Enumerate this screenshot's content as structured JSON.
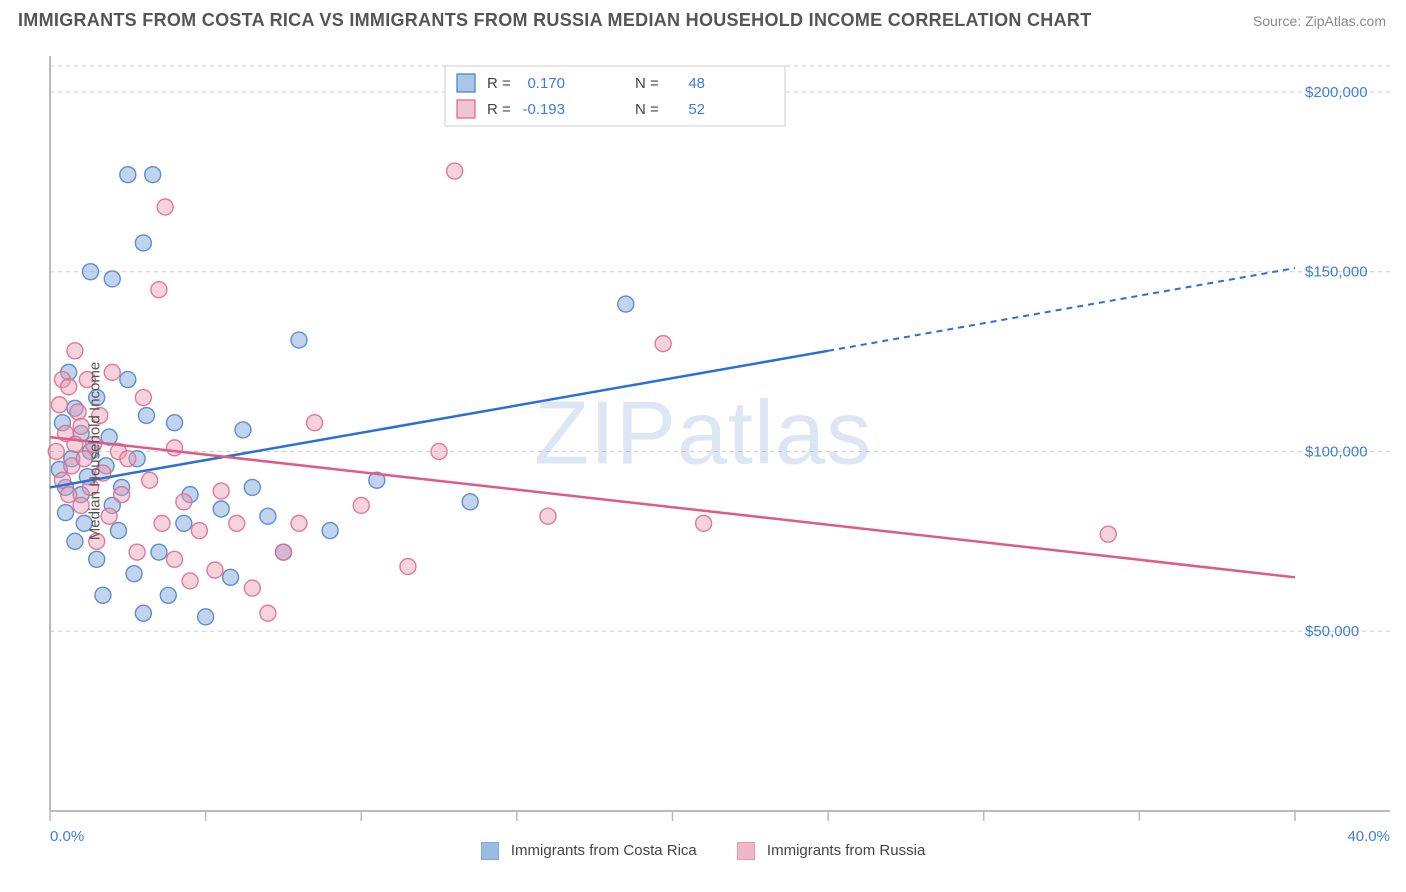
{
  "header": {
    "title": "IMMIGRANTS FROM COSTA RICA VS IMMIGRANTS FROM RUSSIA MEDIAN HOUSEHOLD INCOME CORRELATION CHART",
    "source_prefix": "Source: ",
    "source": "ZipAtlas.com"
  },
  "watermark": {
    "zip": "ZIP",
    "atlas": "atlas"
  },
  "chart": {
    "type": "scatter",
    "ylabel": "Median Household Income",
    "xlim": [
      0,
      40
    ],
    "ylim": [
      0,
      210000
    ],
    "x_ticks": [
      0,
      5,
      10,
      15,
      20,
      25,
      30,
      35,
      40
    ],
    "x_tick_labels_shown": {
      "0": "0.0%",
      "40": "40.0%"
    },
    "y_ticks": [
      50000,
      100000,
      150000,
      200000
    ],
    "y_tick_labels": [
      "$50,000",
      "$100,000",
      "$150,000",
      "$200,000"
    ],
    "grid_color": "#cccccc",
    "axis_color": "#bbbbbb",
    "background": "#ffffff",
    "marker_radius": 8,
    "series": [
      {
        "name": "Immigrants from Costa Rica",
        "fill": "#739fd9",
        "stroke": "#4f85cc",
        "R": "0.170",
        "N": "48",
        "trend": {
          "color": "#2a6fd6",
          "x1": 0,
          "y1": 90000,
          "x_solid_end": 25,
          "y_solid_end": 128000,
          "x2": 40,
          "y2": 151000
        },
        "points": [
          [
            0.3,
            95000
          ],
          [
            0.4,
            108000
          ],
          [
            0.5,
            90000
          ],
          [
            0.5,
            83000
          ],
          [
            0.6,
            122000
          ],
          [
            0.7,
            98000
          ],
          [
            0.8,
            112000
          ],
          [
            0.8,
            75000
          ],
          [
            1.0,
            105000
          ],
          [
            1.0,
            88000
          ],
          [
            1.1,
            80000
          ],
          [
            1.2,
            93000
          ],
          [
            1.3,
            150000
          ],
          [
            1.3,
            100000
          ],
          [
            1.5,
            70000
          ],
          [
            1.5,
            115000
          ],
          [
            1.7,
            60000
          ],
          [
            1.8,
            96000
          ],
          [
            1.9,
            104000
          ],
          [
            2.0,
            85000
          ],
          [
            2.0,
            148000
          ],
          [
            2.2,
            78000
          ],
          [
            2.3,
            90000
          ],
          [
            2.5,
            120000
          ],
          [
            2.5,
            177000
          ],
          [
            2.7,
            66000
          ],
          [
            2.8,
            98000
          ],
          [
            3.0,
            158000
          ],
          [
            3.0,
            55000
          ],
          [
            3.1,
            110000
          ],
          [
            3.3,
            177000
          ],
          [
            3.5,
            72000
          ],
          [
            3.8,
            60000
          ],
          [
            4.0,
            108000
          ],
          [
            4.3,
            80000
          ],
          [
            4.5,
            88000
          ],
          [
            5.0,
            54000
          ],
          [
            5.5,
            84000
          ],
          [
            5.8,
            65000
          ],
          [
            6.2,
            106000
          ],
          [
            6.5,
            90000
          ],
          [
            7.0,
            82000
          ],
          [
            7.5,
            72000
          ],
          [
            8.0,
            131000
          ],
          [
            9.0,
            78000
          ],
          [
            10.5,
            92000
          ],
          [
            13.5,
            86000
          ],
          [
            18.5,
            141000
          ]
        ]
      },
      {
        "name": "Immigrants from Russia",
        "fill": "#e99bb2",
        "stroke": "#de6e8f",
        "R": "-0.193",
        "N": "52",
        "trend": {
          "color": "#e05a86",
          "x1": 0,
          "y1": 104000,
          "x_solid_end": 40,
          "y_solid_end": 65000,
          "x2": 40,
          "y2": 65000
        },
        "points": [
          [
            0.2,
            100000
          ],
          [
            0.3,
            113000
          ],
          [
            0.4,
            120000
          ],
          [
            0.4,
            92000
          ],
          [
            0.5,
            105000
          ],
          [
            0.6,
            118000
          ],
          [
            0.6,
            88000
          ],
          [
            0.7,
            96000
          ],
          [
            0.8,
            128000
          ],
          [
            0.8,
            102000
          ],
          [
            0.9,
            111000
          ],
          [
            1.0,
            85000
          ],
          [
            1.0,
            107000
          ],
          [
            1.1,
            98000
          ],
          [
            1.2,
            120000
          ],
          [
            1.3,
            90000
          ],
          [
            1.4,
            102000
          ],
          [
            1.5,
            75000
          ],
          [
            1.6,
            110000
          ],
          [
            1.7,
            94000
          ],
          [
            1.9,
            82000
          ],
          [
            2.0,
            122000
          ],
          [
            2.2,
            100000
          ],
          [
            2.3,
            88000
          ],
          [
            2.5,
            98000
          ],
          [
            2.8,
            72000
          ],
          [
            3.0,
            115000
          ],
          [
            3.2,
            92000
          ],
          [
            3.5,
            145000
          ],
          [
            3.6,
            80000
          ],
          [
            3.7,
            168000
          ],
          [
            4.0,
            70000
          ],
          [
            4.0,
            101000
          ],
          [
            4.3,
            86000
          ],
          [
            4.5,
            64000
          ],
          [
            4.8,
            78000
          ],
          [
            5.3,
            67000
          ],
          [
            5.5,
            89000
          ],
          [
            6.0,
            80000
          ],
          [
            6.5,
            62000
          ],
          [
            7.0,
            55000
          ],
          [
            7.5,
            72000
          ],
          [
            8.0,
            80000
          ],
          [
            8.5,
            108000
          ],
          [
            10.0,
            85000
          ],
          [
            11.5,
            68000
          ],
          [
            12.5,
            100000
          ],
          [
            13.0,
            178000
          ],
          [
            16.0,
            82000
          ],
          [
            19.7,
            130000
          ],
          [
            21.0,
            80000
          ],
          [
            34.0,
            77000
          ]
        ]
      }
    ],
    "top_legend": {
      "R_label": "R =",
      "N_label": "N ="
    },
    "bottom_legend": {
      "a": "Immigrants from Costa Rica",
      "b": "Immigrants from Russia"
    }
  }
}
